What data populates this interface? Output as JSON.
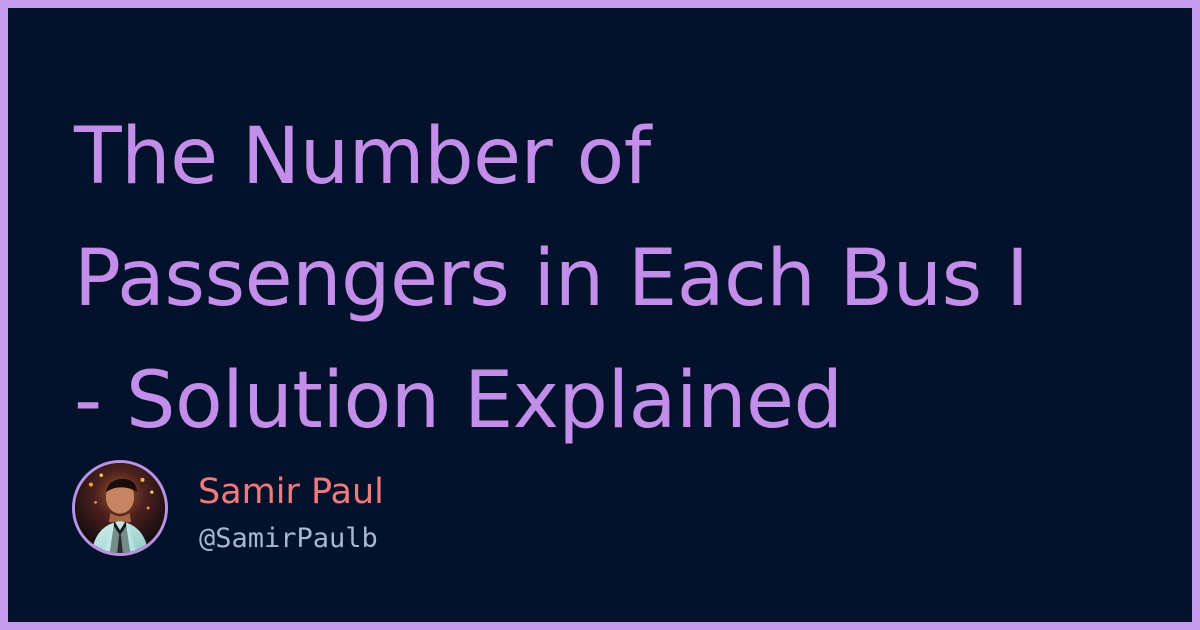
{
  "title": {
    "lines": [
      "The Number of",
      "Passengers in Each Bus I",
      "- Solution Explained"
    ]
  },
  "author": {
    "name": "Samir Paul",
    "handle": "@SamirPaulb",
    "avatar_icon": "person-photo-icon"
  },
  "colors": {
    "frame": "#c39bea",
    "background": "#03122a",
    "title": "#c38ee9",
    "name": "#f07a7d",
    "handle": "#a8b8d2"
  }
}
